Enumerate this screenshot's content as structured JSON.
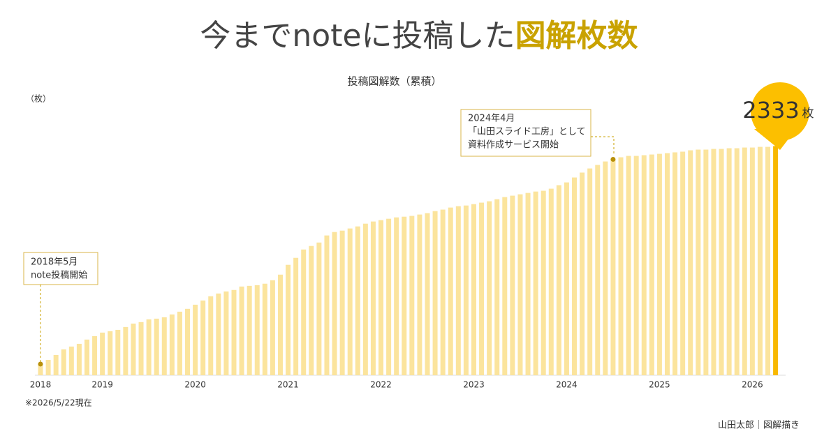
{
  "chart_data": {
    "type": "bar",
    "title": "今までnoteに投稿した",
    "title_highlight": "図解枚数",
    "subtitle": "投稿図解数（累積）",
    "y_unit": "（枚）",
    "total_unit": "枚",
    "footnote": "※2026/5/22現在",
    "credit": "山田太郎｜図解描き",
    "color": "#fbe49d",
    "highlight_color": "#f8b800",
    "ylim": [
      0,
      2400
    ],
    "categories": [
      "2018",
      null,
      null,
      null,
      null,
      null,
      null,
      null,
      "2019",
      null,
      null,
      null,
      null,
      null,
      null,
      null,
      null,
      null,
      null,
      null,
      "2020",
      null,
      null,
      null,
      null,
      null,
      null,
      null,
      null,
      null,
      null,
      null,
      "2021",
      null,
      null,
      null,
      null,
      null,
      null,
      null,
      null,
      null,
      null,
      null,
      "2022",
      null,
      null,
      null,
      null,
      null,
      null,
      null,
      null,
      null,
      null,
      null,
      "2023",
      null,
      null,
      null,
      null,
      null,
      null,
      null,
      null,
      null,
      null,
      null,
      "2024",
      null,
      null,
      null,
      null,
      null,
      null,
      null,
      null,
      null,
      null,
      null,
      "2025",
      null,
      null,
      null,
      null,
      null,
      null,
      null,
      null,
      null,
      null,
      null,
      "2026",
      null,
      null,
      null
    ],
    "values": [
      114,
      156,
      206,
      263,
      292,
      320,
      363,
      398,
      434,
      448,
      462,
      491,
      526,
      541,
      569,
      576,
      590,
      619,
      647,
      676,
      718,
      761,
      804,
      832,
      853,
      868,
      903,
      910,
      917,
      932,
      967,
      1024,
      1124,
      1195,
      1280,
      1316,
      1351,
      1423,
      1458,
      1472,
      1494,
      1515,
      1543,
      1565,
      1579,
      1593,
      1607,
      1614,
      1622,
      1636,
      1650,
      1671,
      1686,
      1707,
      1721,
      1728,
      1742,
      1757,
      1771,
      1792,
      1814,
      1828,
      1842,
      1856,
      1870,
      1878,
      1899,
      1935,
      1963,
      2013,
      2063,
      2105,
      2141,
      2176,
      2198,
      2219,
      2233,
      2233,
      2240,
      2247,
      2254,
      2261,
      2269,
      2276,
      2290,
      2297,
      2297,
      2304,
      2304,
      2311,
      2311,
      2318,
      2318,
      2325,
      2325,
      2333
    ],
    "annotations": [
      {
        "lines": [
          "2018年5月",
          "note投稿開始"
        ]
      },
      {
        "lines": [
          "2024年4月",
          "「山田スライド工房」として",
          "資料作成サービス開始"
        ]
      }
    ]
  }
}
